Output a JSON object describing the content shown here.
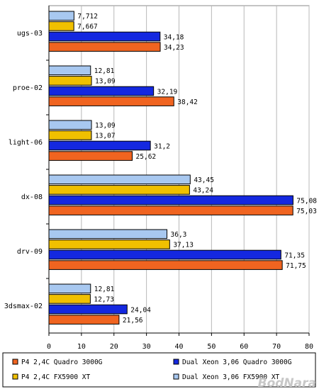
{
  "chart_data": {
    "type": "bar",
    "orientation": "horizontal",
    "categories": [
      "ugs-03",
      "proe-02",
      "light-06",
      "dx-08",
      "drv-09",
      "3dsmax-02"
    ],
    "series": [
      {
        "name": "Dual Xeon 3,06 FX5900 XT",
        "color": "#a8c8f0",
        "values": [
          7.712,
          12.81,
          13.09,
          43.45,
          36.3,
          12.81
        ],
        "labels": [
          "7,712",
          "12,81",
          "13,09",
          "43,45",
          "36,3",
          "12,81"
        ]
      },
      {
        "name": "P4 2,4C FX5900 XT",
        "color": "#f0c000",
        "values": [
          7.667,
          13.09,
          13.07,
          43.24,
          37.13,
          12.73
        ],
        "labels": [
          "7,667",
          "13,09",
          "13,07",
          "43,24",
          "37,13",
          "12,73"
        ]
      },
      {
        "name": "Dual Xeon 3,06 Quadro 3000G",
        "color": "#1428e0",
        "values": [
          34.18,
          32.19,
          31.2,
          75.08,
          71.35,
          24.04
        ],
        "labels": [
          "34,18",
          "32,19",
          "31,2",
          "75,08",
          "71,35",
          "24,04"
        ]
      },
      {
        "name": "P4 2,4C Quadro 3000G",
        "color": "#f06420",
        "values": [
          34.23,
          38.42,
          25.62,
          75.03,
          71.75,
          21.56
        ],
        "labels": [
          "34,23",
          "38,42",
          "25,62",
          "75,03",
          "71,75",
          "21,56"
        ]
      }
    ],
    "xlim": [
      0,
      80
    ],
    "xticks": [
      0,
      10,
      20,
      30,
      40,
      50,
      60,
      70,
      80
    ],
    "grid": "vertical",
    "legend": {
      "placement": "bottom",
      "order": [
        "P4 2,4C Quadro 3000G",
        "Dual Xeon 3,06 Quadro 3000G",
        "P4 2,4C FX5900 XT",
        "Dual Xeon 3,06 FX5900 XT"
      ]
    }
  },
  "watermark": "BodNara"
}
